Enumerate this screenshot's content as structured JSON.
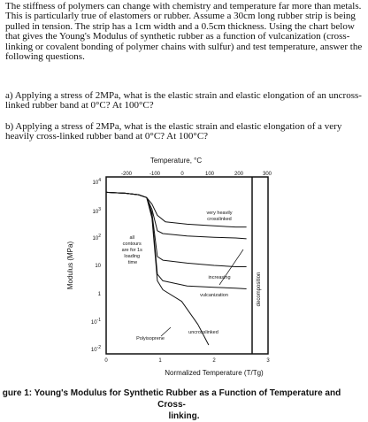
{
  "intro": "The stiffness of polymers can change with chemistry and temperature far more than metals.  This is particularly true of elastomers or rubber.  Assume a 30cm long rubber strip is being pulled in tension.  The strip has a 1cm width and a 0.5cm thickness.  Using the chart below that gives the Young's Modulus of synthetic rubber as a function of vulcanization (cross-linking or covalent bonding of polymer chains with sulfur) and test temperature, answer the following questions.",
  "question_a": "a) Applying a stress of 2MPa, what is the elastic strain and elastic elongation of an uncross-linked rubber band at 0°C?  At 100°C?",
  "question_b": "b) Applying a stress of 2MPa, what is the elastic strain and elastic elongation of a very heavily cross-linked rubber band at 0°C?  At 100°C?",
  "chart_data": {
    "type": "line",
    "title": "Temperature, °C",
    "top_axis_ticks": [
      "-200",
      "-100",
      "0",
      "100",
      "200",
      "300"
    ],
    "bottom_axis_ticks": [
      "0",
      "1",
      "2",
      "3"
    ],
    "ylabel": "Modulus (MPa)",
    "xlabel": "Normalized Temperature (T/Tg)",
    "y_tick_labels": [
      "10⁴",
      "10³",
      "10²",
      "10",
      "1",
      "10⁻¹",
      "10⁻²"
    ],
    "y_scale": "log",
    "ylim": [
      0.01,
      10000
    ],
    "xlim": [
      0,
      3
    ],
    "annotations": {
      "glassy_note": "all contours are for 1s loading time",
      "very_heavily": "very heavily crosslinked",
      "increasing": "increasing",
      "vulcanization": "vulcanization",
      "uncrosslinked": "uncrosslinked",
      "polyisoprene": "Polyisoprene",
      "decomposition": "decomposition"
    },
    "series": [
      {
        "x": [
          0.0,
          0.35,
          0.6,
          0.75,
          0.85,
          0.95,
          1.1,
          1.5,
          2.0,
          2.4,
          2.6
        ],
        "y": [
          3000,
          2800,
          2500,
          2000,
          1200,
          500,
          300,
          250,
          220,
          200,
          200
        ]
      },
      {
        "x": [
          0.0,
          0.35,
          0.6,
          0.75,
          0.85,
          0.95,
          1.05,
          1.5,
          2.0,
          2.4,
          2.6
        ],
        "y": [
          3000,
          2800,
          2500,
          2000,
          800,
          150,
          120,
          100,
          90,
          85,
          80
        ]
      },
      {
        "x": [
          0.0,
          0.35,
          0.6,
          0.75,
          0.85,
          0.95,
          1.05,
          1.5,
          2.0,
          2.4,
          2.6
        ],
        "y": [
          3000,
          2800,
          2500,
          2000,
          600,
          20,
          15,
          12,
          10,
          9,
          9
        ]
      },
      {
        "x": [
          0.0,
          0.35,
          0.6,
          0.75,
          0.85,
          0.95,
          1.05,
          1.5,
          2.0,
          2.4,
          2.6
        ],
        "y": [
          3000,
          2800,
          2500,
          2000,
          500,
          5,
          3,
          2,
          1.8,
          1.7,
          1.6
        ]
      },
      {
        "x": [
          0.0,
          0.35,
          0.6,
          0.75,
          0.85,
          0.95,
          1.05,
          1.4,
          1.7,
          1.9
        ],
        "y": [
          3000,
          2800,
          2500,
          2000,
          400,
          3,
          1.5,
          0.6,
          0.1,
          0.02
        ]
      }
    ]
  },
  "caption": {
    "line1": "gure 1: Young's Modulus for Synthetic Rubber as a Function of Temperature and Cross-",
    "line2": "linking."
  }
}
